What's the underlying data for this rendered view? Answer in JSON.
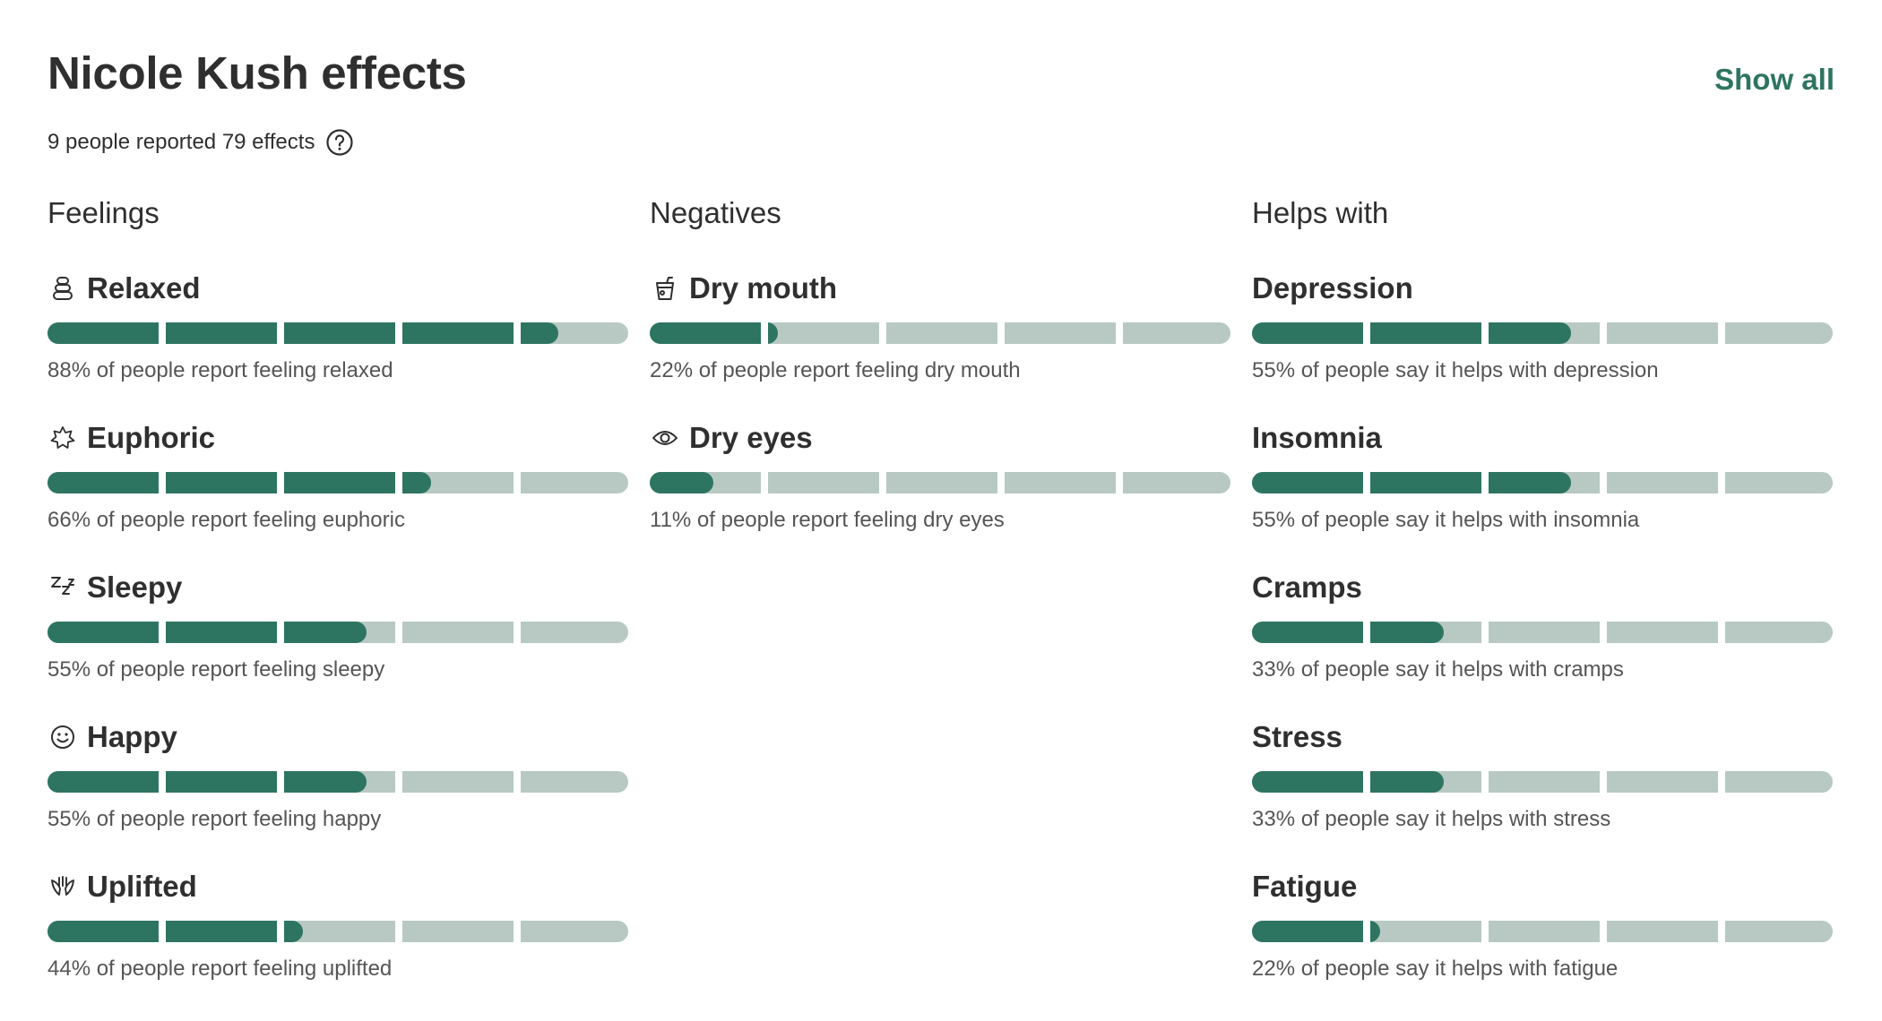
{
  "header": {
    "title": "Nicole Kush effects",
    "show_all_label": "Show all",
    "summary": "9 people reported 79 effects"
  },
  "colors": {
    "accent": "#2e7561",
    "track": "#b7c9c2"
  },
  "columns": [
    {
      "heading": "Feelings",
      "effects": [
        {
          "icon": "relaxed-icon",
          "name": "Relaxed",
          "percent": 88,
          "desc": "88% of people report feeling relaxed"
        },
        {
          "icon": "euphoric-icon",
          "name": "Euphoric",
          "percent": 66,
          "desc": "66% of people report feeling euphoric"
        },
        {
          "icon": "sleepy-icon",
          "name": "Sleepy",
          "percent": 55,
          "desc": "55% of people report feeling sleepy"
        },
        {
          "icon": "happy-icon",
          "name": "Happy",
          "percent": 55,
          "desc": "55% of people report feeling happy"
        },
        {
          "icon": "uplifted-icon",
          "name": "Uplifted",
          "percent": 44,
          "desc": "44% of people report feeling uplifted"
        }
      ]
    },
    {
      "heading": "Negatives",
      "effects": [
        {
          "icon": "dry-mouth-icon",
          "name": "Dry mouth",
          "percent": 22,
          "desc": "22% of people report feeling dry mouth"
        },
        {
          "icon": "dry-eyes-icon",
          "name": "Dry eyes",
          "percent": 11,
          "desc": "11% of people report feeling dry eyes"
        }
      ]
    },
    {
      "heading": "Helps with",
      "effects": [
        {
          "icon": "",
          "name": "Depression",
          "percent": 55,
          "desc": "55% of people say it helps with depression"
        },
        {
          "icon": "",
          "name": "Insomnia",
          "percent": 55,
          "desc": "55% of people say it helps with insomnia"
        },
        {
          "icon": "",
          "name": "Cramps",
          "percent": 33,
          "desc": "33% of people say it helps with cramps"
        },
        {
          "icon": "",
          "name": "Stress",
          "percent": 33,
          "desc": "33% of people say it helps with stress"
        },
        {
          "icon": "",
          "name": "Fatigue",
          "percent": 22,
          "desc": "22% of people say it helps with fatigue"
        }
      ]
    }
  ]
}
